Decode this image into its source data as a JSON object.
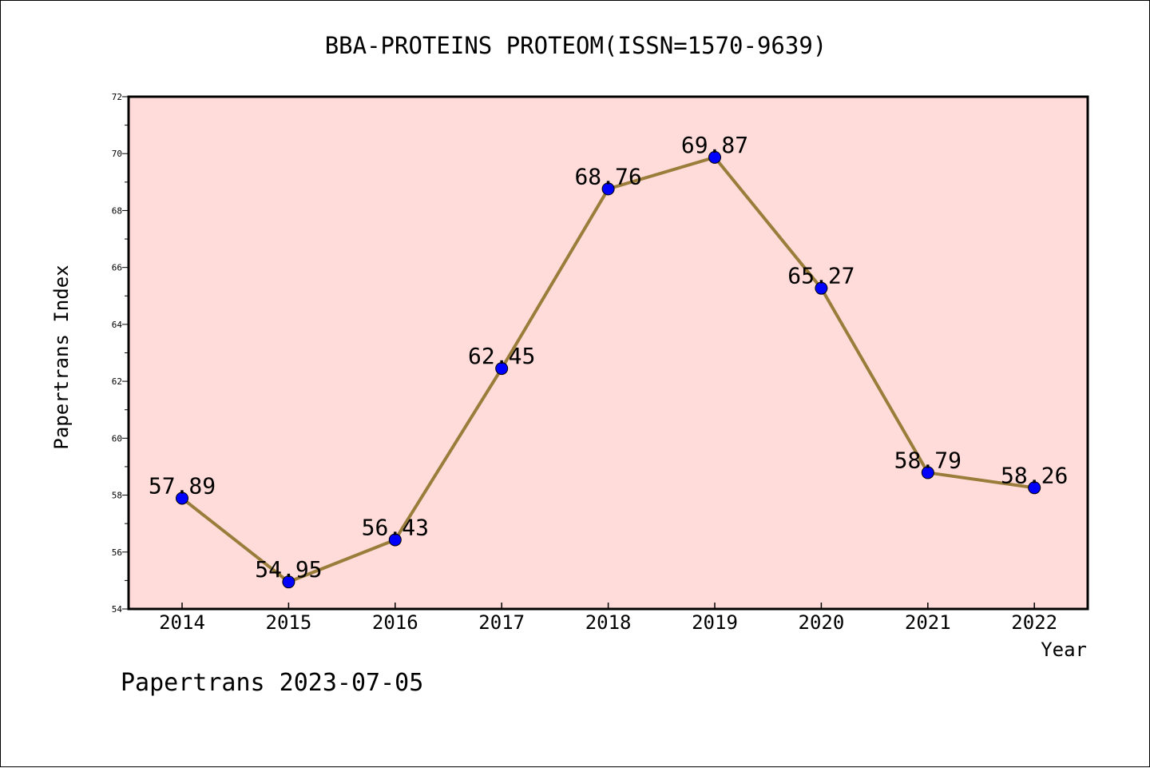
{
  "chart_data": {
    "type": "line",
    "title": "BBA-PROTEINS PROTEOM(ISSN=1570-9639)",
    "xlabel": "Year",
    "ylabel": "Papertrans Index",
    "categories": [
      "2014",
      "2015",
      "2016",
      "2017",
      "2018",
      "2019",
      "2020",
      "2021",
      "2022"
    ],
    "series": [
      {
        "values": [
          57.89,
          54.95,
          56.43,
          62.45,
          68.76,
          69.87,
          65.27,
          58.79,
          58.26
        ]
      }
    ],
    "data_labels": [
      "57.89",
      "54.95",
      "56.43",
      "62.45",
      "68.76",
      "69.87",
      "65.27",
      "58.79",
      "58.26"
    ],
    "ylim": [
      54,
      72
    ],
    "y_ticks": [
      "54",
      "56",
      "58",
      "60",
      "62",
      "64",
      "66",
      "68",
      "70",
      "72"
    ],
    "grid": false,
    "legend": "none",
    "colors": {
      "plot_background": "#ffdcd9",
      "line": "#9a7d3a",
      "marker": "#0000ff",
      "marker_edge": "#000000"
    }
  },
  "footer": "Papertrans 2023-07-05"
}
